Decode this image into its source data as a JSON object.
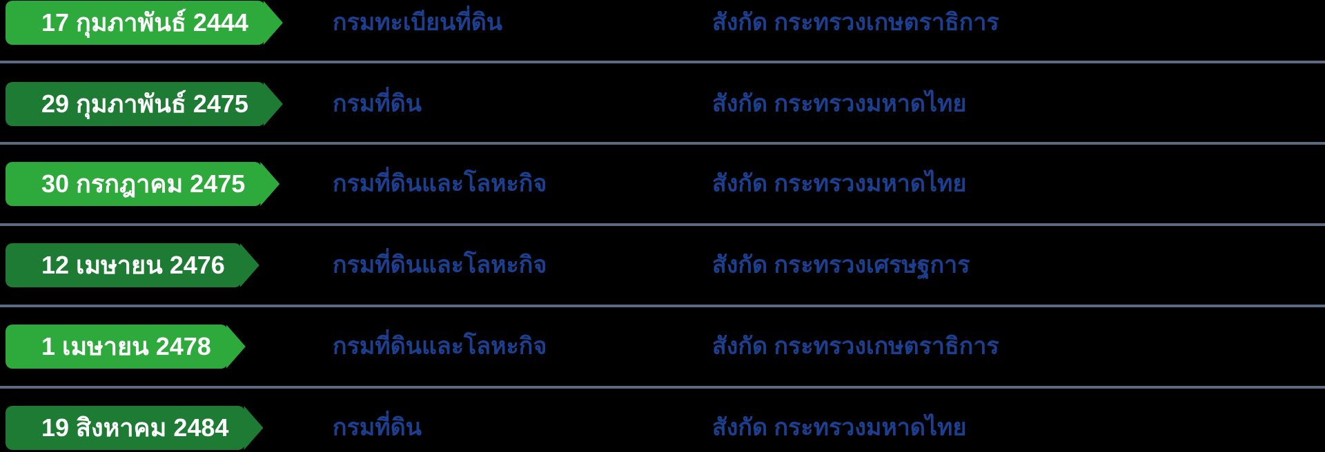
{
  "timeline": {
    "rows": [
      {
        "date": "17 กุมภาพันธ์ 2444",
        "department": "กรมทะเบียนที่ดิน",
        "affiliation": "สังกัด กระทรวงเกษตราธิการ"
      },
      {
        "date": "29 กุมภาพันธ์ 2475",
        "department": "กรมที่ดิน",
        "affiliation": "สังกัด กระทรวงมหาดไทย"
      },
      {
        "date": "30 กรกฎาคม 2475",
        "department": "กรมที่ดินและโลหะกิจ",
        "affiliation": "สังกัด กระทรวงมหาดไทย"
      },
      {
        "date": "12 เมษายน 2476",
        "department": "กรมที่ดินและโลหะกิจ",
        "affiliation": "สังกัด กระทรวงเศรษฐการ"
      },
      {
        "date": "1 เมษายน 2478",
        "department": "กรมที่ดินและโลหะกิจ",
        "affiliation": "สังกัด กระทรวงเกษตราธิการ"
      },
      {
        "date": "19 สิงหาคม 2484",
        "department": "กรมที่ดิน",
        "affiliation": "สังกัด กระทรวงมหาดไทย"
      }
    ],
    "colors": {
      "badge_green_light": "#2EA93C",
      "badge_green_dark": "#1E7B33",
      "badge_text": "#FFFFFF",
      "text_blue": "#1C3F90",
      "divider": "#5C6A84",
      "background": "#000000"
    }
  }
}
